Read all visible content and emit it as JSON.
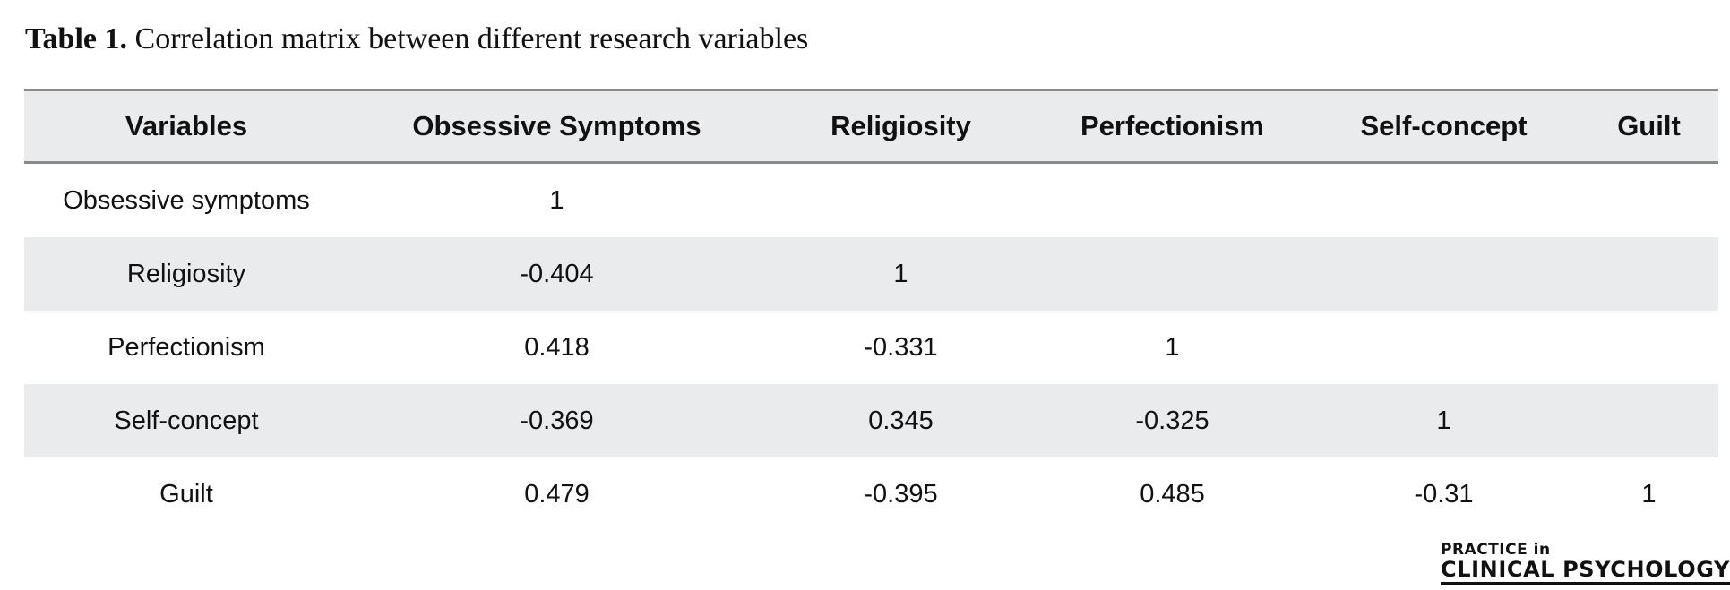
{
  "caption": {
    "label": "Table 1.",
    "text": "Correlation matrix between different research variables"
  },
  "table": {
    "headers": [
      "Variables",
      "Obsessive Symptoms",
      "Religiosity",
      "Perfectionism",
      "Self-concept",
      "Guilt"
    ],
    "rows": [
      [
        "Obsessive symptoms",
        "1",
        "",
        "",
        "",
        ""
      ],
      [
        "Religiosity",
        "-0.404",
        "1",
        "",
        "",
        ""
      ],
      [
        "Perfectionism",
        "0.418",
        "-0.331",
        "1",
        "",
        ""
      ],
      [
        "Self-concept",
        "-0.369",
        "0.345",
        "-0.325",
        "1",
        ""
      ],
      [
        "Guilt",
        "0.479",
        "-0.395",
        "0.485",
        "-0.31",
        "1"
      ]
    ]
  },
  "logo": {
    "line1": "PRACTICE in",
    "line2": "CLINICAL PSYCHOLOGY"
  },
  "colors": {
    "shaded_row": "#eaebed",
    "rule": "#8a8a8a",
    "logo_accent": "#e58a2b"
  }
}
